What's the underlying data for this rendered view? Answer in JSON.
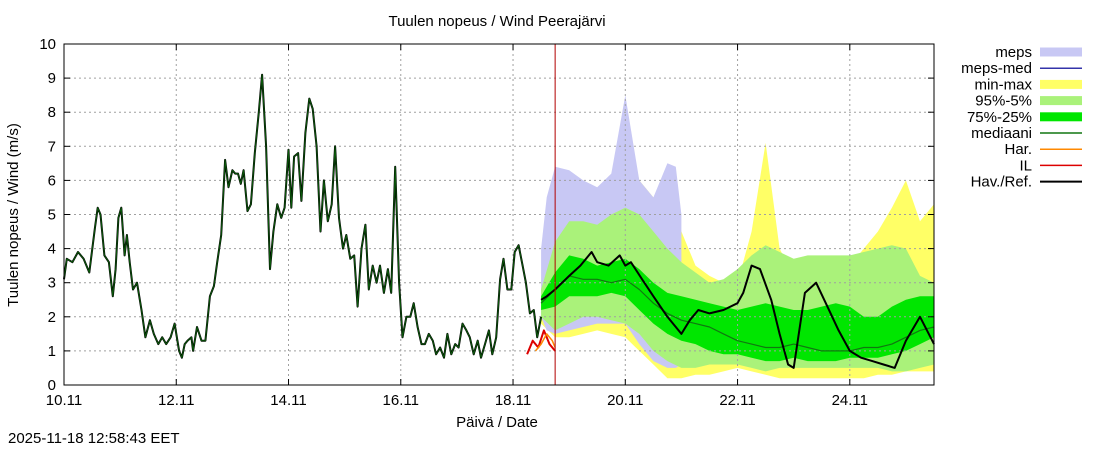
{
  "timestamp": "2025-11-18 12:58:43 EET",
  "chart_data": {
    "type": "line",
    "title": "Tuulen nopeus / Wind  Peerajärvi",
    "xlabel": "Päivä / Date",
    "ylabel": "Tuulen nopeus / Wind (m/s)",
    "xlim": [
      0,
      15.5
    ],
    "ylim": [
      0,
      10
    ],
    "grid": true,
    "legend_position": "top-right outside",
    "x_ticks": [
      {
        "x": 0,
        "label": "10.11"
      },
      {
        "x": 2,
        "label": "12.11"
      },
      {
        "x": 4,
        "label": "14.11"
      },
      {
        "x": 6,
        "label": "16.11"
      },
      {
        "x": 8,
        "label": "18.11"
      },
      {
        "x": 10,
        "label": "20.11"
      },
      {
        "x": 12,
        "label": "22.11"
      },
      {
        "x": 14,
        "label": "24.11"
      }
    ],
    "y_ticks": [
      0,
      1,
      2,
      3,
      4,
      5,
      6,
      7,
      8,
      9,
      10
    ],
    "now_x": 8.75,
    "legend": [
      {
        "key": "meps",
        "label": "meps",
        "kind": "band",
        "color": "#c8c8f4"
      },
      {
        "key": "meps_med",
        "label": "meps-med",
        "kind": "line",
        "color": "#3333aa"
      },
      {
        "key": "minmax",
        "label": "min-max",
        "kind": "band",
        "color": "#ffff66"
      },
      {
        "key": "p95_5",
        "label": "95%-5%",
        "kind": "band",
        "color": "#aaf27a"
      },
      {
        "key": "p75_25",
        "label": "75%-25%",
        "kind": "band",
        "color": "#00e600"
      },
      {
        "key": "median",
        "label": "mediaani",
        "kind": "line",
        "color": "#117711"
      },
      {
        "key": "har",
        "label": "Har.",
        "kind": "line",
        "color": "#ff8800"
      },
      {
        "key": "il",
        "label": "IL",
        "kind": "line",
        "color": "#dd0000"
      },
      {
        "key": "obs",
        "label": "Hav./Ref.",
        "kind": "line",
        "color": "#000000"
      }
    ],
    "series": {
      "meps_band": {
        "x": [
          8.5,
          8.6,
          8.75,
          9.0,
          9.25,
          9.5,
          9.75,
          10.0,
          10.25,
          10.5,
          10.75,
          10.9,
          11.0
        ],
        "lo": [
          2.0,
          1.6,
          1.5,
          1.6,
          1.7,
          1.8,
          1.8,
          1.8,
          1.2,
          0.7,
          0.5,
          0.5,
          0.6
        ],
        "hi": [
          4.0,
          5.5,
          6.4,
          6.3,
          6.0,
          5.8,
          6.2,
          8.5,
          6.0,
          5.5,
          6.5,
          6.4,
          5.0
        ]
      },
      "minmax_band": {
        "x": [
          8.5,
          8.75,
          9.0,
          9.25,
          9.5,
          9.75,
          10.0,
          10.25,
          10.5,
          10.75,
          11.0,
          11.25,
          11.5,
          11.75,
          12.0,
          12.25,
          12.5,
          12.75,
          13.0,
          13.25,
          13.5,
          13.75,
          14.0,
          14.25,
          14.5,
          14.75,
          15.0,
          15.25,
          15.5
        ],
        "lo": [
          1.8,
          1.4,
          1.4,
          1.5,
          1.6,
          1.5,
          1.4,
          1.0,
          0.6,
          0.2,
          0.2,
          0.3,
          0.3,
          0.4,
          0.5,
          0.4,
          0.3,
          0.2,
          0.2,
          0.2,
          0.2,
          0.2,
          0.2,
          0.2,
          0.3,
          0.3,
          0.4,
          0.4,
          0.4
        ],
        "hi": [
          3.0,
          5.6,
          5.5,
          5.0,
          5.0,
          5.6,
          7.9,
          6.0,
          5.5,
          5.5,
          4.5,
          3.5,
          3.2,
          3.0,
          3.0,
          4.5,
          7.1,
          4.0,
          3.2,
          3.3,
          3.0,
          3.3,
          3.5,
          4.0,
          4.5,
          5.2,
          6.0,
          4.8,
          5.3
        ]
      },
      "p95_band": {
        "x": [
          8.5,
          8.75,
          9.0,
          9.25,
          9.5,
          9.75,
          10.0,
          10.25,
          10.5,
          10.75,
          11.0,
          11.25,
          11.5,
          11.75,
          12.0,
          12.25,
          12.5,
          12.75,
          13.0,
          13.25,
          13.5,
          13.75,
          14.0,
          14.25,
          14.5,
          14.75,
          15.0,
          15.25,
          15.5
        ],
        "lo": [
          2.0,
          1.6,
          1.8,
          2.0,
          2.0,
          1.9,
          1.8,
          1.5,
          1.0,
          0.7,
          0.5,
          0.5,
          0.6,
          0.6,
          0.6,
          0.5,
          0.4,
          0.5,
          0.5,
          0.5,
          0.5,
          0.5,
          0.5,
          0.5,
          0.5,
          0.4,
          0.4,
          0.5,
          0.6
        ],
        "hi": [
          2.8,
          4.2,
          4.8,
          4.8,
          4.7,
          5.0,
          5.2,
          5.0,
          4.5,
          4.0,
          3.6,
          3.3,
          3.0,
          3.1,
          3.4,
          3.8,
          4.1,
          3.9,
          3.7,
          3.8,
          3.8,
          3.8,
          3.8,
          3.9,
          4.0,
          4.1,
          4.0,
          3.2,
          3.0
        ]
      },
      "p75_band": {
        "x": [
          8.5,
          8.75,
          9.0,
          9.25,
          9.5,
          9.75,
          10.0,
          10.25,
          10.5,
          10.75,
          11.0,
          11.25,
          11.5,
          11.75,
          12.0,
          12.25,
          12.5,
          12.75,
          13.0,
          13.25,
          13.5,
          13.75,
          14.0,
          14.25,
          14.5,
          14.75,
          15.0,
          15.25,
          15.5
        ],
        "lo": [
          2.2,
          2.3,
          2.6,
          2.6,
          2.6,
          2.7,
          2.6,
          2.2,
          1.8,
          1.5,
          1.3,
          1.2,
          1.0,
          0.9,
          0.9,
          0.8,
          0.7,
          0.7,
          0.8,
          0.7,
          0.7,
          0.7,
          0.8,
          0.8,
          0.8,
          0.9,
          1.0,
          1.2,
          1.4
        ],
        "hi": [
          2.6,
          3.3,
          3.8,
          3.7,
          3.5,
          3.6,
          3.7,
          3.4,
          3.0,
          2.7,
          2.6,
          2.5,
          2.4,
          2.3,
          2.2,
          2.3,
          2.4,
          2.3,
          2.2,
          2.2,
          2.3,
          2.4,
          2.3,
          2.0,
          2.0,
          2.3,
          2.5,
          2.6,
          2.6
        ]
      },
      "median": {
        "x": [
          8.5,
          8.75,
          9.0,
          9.25,
          9.5,
          9.75,
          10.0,
          10.25,
          10.5,
          10.75,
          11.0,
          11.25,
          11.5,
          11.75,
          12.0,
          12.25,
          12.5,
          12.75,
          13.0,
          13.25,
          13.5,
          13.75,
          14.0,
          14.25,
          14.5,
          14.75,
          15.0,
          15.25,
          15.5
        ],
        "y": [
          2.4,
          2.8,
          3.2,
          3.1,
          3.1,
          3.0,
          3.1,
          2.8,
          2.4,
          2.1,
          1.9,
          1.8,
          1.7,
          1.5,
          1.3,
          1.2,
          1.1,
          1.1,
          1.2,
          1.1,
          1.0,
          1.0,
          1.0,
          1.1,
          1.1,
          1.2,
          1.4,
          1.6,
          1.7
        ]
      },
      "forecast_line": {
        "x": [
          8.5,
          8.6,
          8.75,
          9.0,
          9.2,
          9.4,
          9.5,
          9.7,
          9.9,
          10.0,
          10.1,
          10.3,
          10.5,
          10.75,
          10.9,
          11.0,
          11.15,
          11.3,
          11.5,
          11.75,
          12.0,
          12.1,
          12.25,
          12.4,
          12.6,
          12.75,
          12.9,
          13.0,
          13.2,
          13.4,
          13.6,
          13.8,
          14.0,
          14.2,
          14.4,
          14.6,
          14.8,
          15.0,
          15.25,
          15.5
        ],
        "y": [
          2.5,
          2.6,
          2.8,
          3.2,
          3.5,
          3.9,
          3.6,
          3.5,
          3.8,
          3.5,
          3.6,
          3.1,
          2.6,
          2.0,
          1.7,
          1.5,
          1.9,
          2.2,
          2.1,
          2.2,
          2.4,
          2.7,
          3.5,
          3.4,
          2.5,
          1.5,
          0.6,
          0.5,
          2.7,
          3.0,
          2.3,
          1.6,
          1.0,
          0.8,
          0.7,
          0.6,
          0.5,
          1.3,
          2.0,
          1.2
        ]
      },
      "il_line": {
        "x": [
          8.25,
          8.35,
          8.45,
          8.55,
          8.65,
          8.75
        ],
        "y": [
          0.9,
          1.3,
          1.1,
          1.6,
          1.2,
          1.0
        ]
      },
      "har_line": {
        "x": [
          8.4,
          8.5,
          8.6,
          8.7,
          8.75
        ],
        "y": [
          1.0,
          1.2,
          1.5,
          1.3,
          1.1
        ]
      },
      "observed": {
        "x": [
          0.0,
          0.05,
          0.15,
          0.25,
          0.35,
          0.45,
          0.55,
          0.6,
          0.65,
          0.72,
          0.8,
          0.87,
          0.92,
          0.97,
          1.02,
          1.08,
          1.12,
          1.17,
          1.23,
          1.3,
          1.38,
          1.45,
          1.53,
          1.6,
          1.68,
          1.75,
          1.82,
          1.9,
          1.97,
          2.05,
          2.1,
          2.15,
          2.2,
          2.27,
          2.3,
          2.37,
          2.45,
          2.52,
          2.6,
          2.67,
          2.73,
          2.8,
          2.87,
          2.93,
          3.0,
          3.05,
          3.1,
          3.15,
          3.2,
          3.27,
          3.33,
          3.4,
          3.47,
          3.53,
          3.6,
          3.67,
          3.73,
          3.8,
          3.87,
          3.93,
          4.0,
          4.05,
          4.1,
          4.17,
          4.23,
          4.3,
          4.37,
          4.43,
          4.5,
          4.57,
          4.63,
          4.7,
          4.77,
          4.83,
          4.9,
          4.97,
          5.03,
          5.1,
          5.17,
          5.23,
          5.3,
          5.37,
          5.43,
          5.5,
          5.57,
          5.63,
          5.7,
          5.77,
          5.83,
          5.9,
          5.97,
          6.03,
          6.1,
          6.17,
          6.23,
          6.3,
          6.37,
          6.43,
          6.5,
          6.57,
          6.63,
          6.7,
          6.77,
          6.83,
          6.9,
          6.97,
          7.03,
          7.1,
          7.17,
          7.23,
          7.3,
          7.37,
          7.43,
          7.5,
          7.57,
          7.63,
          7.7,
          7.77,
          7.83,
          7.9,
          7.97,
          8.03,
          8.1,
          8.17,
          8.23,
          8.3,
          8.37,
          8.43,
          8.5
        ],
        "y": [
          3.1,
          3.7,
          3.6,
          3.9,
          3.7,
          3.3,
          4.6,
          5.2,
          5.0,
          3.8,
          3.6,
          2.6,
          3.4,
          4.9,
          5.2,
          3.8,
          4.4,
          3.6,
          2.8,
          3.0,
          2.2,
          1.4,
          1.9,
          1.5,
          1.2,
          1.4,
          1.2,
          1.4,
          1.8,
          1.0,
          0.8,
          1.2,
          1.3,
          1.4,
          1.0,
          1.7,
          1.3,
          1.3,
          2.6,
          2.9,
          3.6,
          4.4,
          6.6,
          5.8,
          6.3,
          6.2,
          6.2,
          5.9,
          6.3,
          5.1,
          5.3,
          6.8,
          8.0,
          9.1,
          7.0,
          3.4,
          4.5,
          5.3,
          4.9,
          5.2,
          6.9,
          5.2,
          6.7,
          6.8,
          5.4,
          7.4,
          8.4,
          8.1,
          7.0,
          4.5,
          6.0,
          4.8,
          5.3,
          7.0,
          4.9,
          4.0,
          4.4,
          3.7,
          3.8,
          2.3,
          4.0,
          4.7,
          2.8,
          3.5,
          3.0,
          3.5,
          2.7,
          3.4,
          2.7,
          6.4,
          3.0,
          1.4,
          2.0,
          2.0,
          2.4,
          1.7,
          1.2,
          1.2,
          1.5,
          1.3,
          0.9,
          1.1,
          0.8,
          1.5,
          0.9,
          1.2,
          1.1,
          1.8,
          1.6,
          1.4,
          0.9,
          1.3,
          0.8,
          1.2,
          1.6,
          0.9,
          1.4,
          3.1,
          3.7,
          2.8,
          2.8,
          3.9,
          4.1,
          3.5,
          3.0,
          2.1,
          2.2,
          1.4,
          2.0
        ]
      }
    }
  }
}
